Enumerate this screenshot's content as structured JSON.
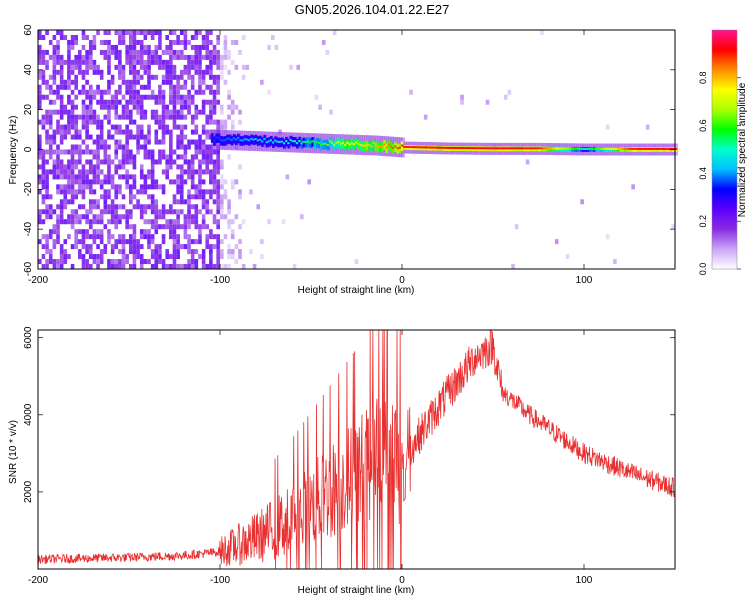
{
  "title": "GN05.2026.104.01.22.E27",
  "chart_data": [
    {
      "type": "heatmap",
      "name": "spectrogram",
      "xlabel": "Height of straight line (km)",
      "ylabel": "Frequency (Hz)",
      "xlim": [
        -200,
        150
      ],
      "ylim": [
        -60,
        60
      ],
      "xticks": [
        -200,
        -100,
        0,
        100
      ],
      "yticks": [
        -60,
        -40,
        -20,
        0,
        20,
        40,
        60
      ],
      "ytick_labels": [
        "-60",
        "-40",
        "-20",
        "0",
        "20",
        "40",
        "60"
      ],
      "colorbar": {
        "label": "Normalized spectral amplitude",
        "range": [
          0.0,
          1.0
        ],
        "ticks": [
          0.0,
          0.2,
          0.4,
          0.6,
          0.8
        ],
        "tick_labels": [
          "0.0",
          "0.2",
          "0.4",
          "0.6",
          "0.8"
        ],
        "colors": [
          "#ffffff",
          "#c9a6f5",
          "#8a2be2",
          "#5b00ff",
          "#0000ff",
          "#00bfff",
          "#00ffcc",
          "#00ff00",
          "#aaff00",
          "#ffff00",
          "#ff8c00",
          "#ff0000",
          "#ff1493"
        ]
      },
      "signal_trace": {
        "x": [
          -105,
          -90,
          -75,
          -60,
          -45,
          -30,
          -15,
          0,
          25,
          50,
          75,
          100,
          125,
          150
        ],
        "freq": [
          5,
          4.5,
          4,
          3.5,
          3,
          2.5,
          2,
          1,
          0.5,
          0.3,
          0.3,
          0,
          0,
          0
        ],
        "amplitude": [
          0.35,
          0.4,
          0.45,
          0.5,
          0.6,
          0.75,
          0.8,
          0.9,
          0.92,
          0.93,
          0.9,
          0.5,
          0.9,
          0.95
        ]
      },
      "noise_region_x": [
        -200,
        -100
      ]
    },
    {
      "type": "line",
      "name": "snr",
      "xlabel": "Height of straight line (km)",
      "ylabel": "SNR (10 * v/v)",
      "xlim": [
        -200,
        150
      ],
      "ylim": [
        0,
        6200
      ],
      "xticks": [
        -200,
        -100,
        0,
        100
      ],
      "yticks": [
        2000,
        4000,
        6000
      ],
      "color": "#e83030",
      "envelope": {
        "x": [
          -200,
          -150,
          -120,
          -100,
          -80,
          -60,
          -40,
          -20,
          -10,
          0,
          20,
          40,
          50,
          55,
          70,
          100,
          125,
          150
        ],
        "y": [
          250,
          300,
          350,
          450,
          800,
          1300,
          2000,
          2700,
          3100,
          2800,
          4200,
          5500,
          5800,
          4600,
          4000,
          3000,
          2500,
          2100
        ]
      }
    }
  ]
}
